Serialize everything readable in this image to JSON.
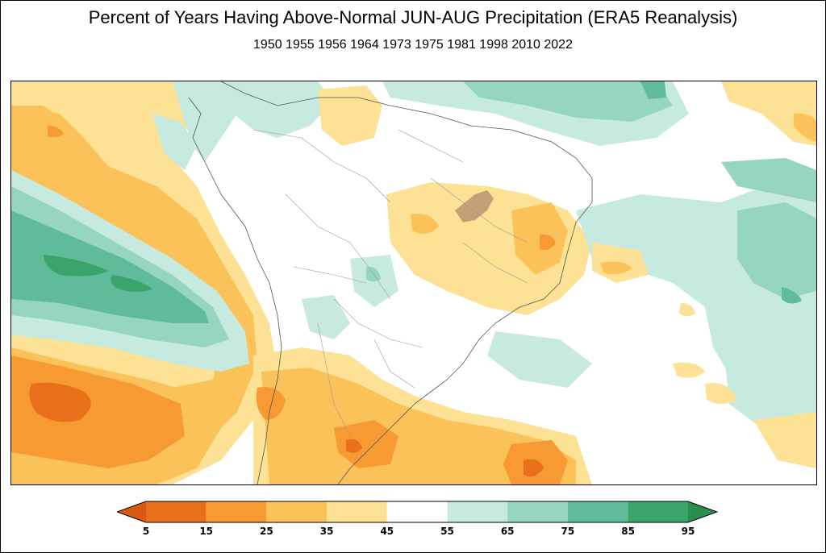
{
  "title": "Percent of Years Having Above-Normal JUN-AUG Precipitation (ERA5 Reanalysis)",
  "subtitle": "1950 1955 1956 1964 1973 1975 1981 1998 2010 2022",
  "legend": {
    "ticks": [
      "5",
      "15",
      "25",
      "35",
      "45",
      "55",
      "65",
      "75",
      "85",
      "95"
    ],
    "bins": [
      {
        "from": 5,
        "to": 15,
        "color": "#e8701a"
      },
      {
        "from": 15,
        "to": 25,
        "color": "#f79a33"
      },
      {
        "from": 25,
        "to": 35,
        "color": "#fbc25a"
      },
      {
        "from": 35,
        "to": 45,
        "color": "#fde295"
      },
      {
        "from": 45,
        "to": 55,
        "color": "#ffffff"
      },
      {
        "from": 55,
        "to": 65,
        "color": "#c7eae0"
      },
      {
        "from": 65,
        "to": 75,
        "color": "#96d5c2"
      },
      {
        "from": 75,
        "to": 85,
        "color": "#5fbb9a"
      },
      {
        "from": 85,
        "to": 95,
        "color": "#3aa46a"
      }
    ],
    "under_color": "#d85a10",
    "over_color": "#2b8d4e"
  },
  "map": {
    "region": "South America and surrounding oceans",
    "masked_color": "#c4a077"
  }
}
